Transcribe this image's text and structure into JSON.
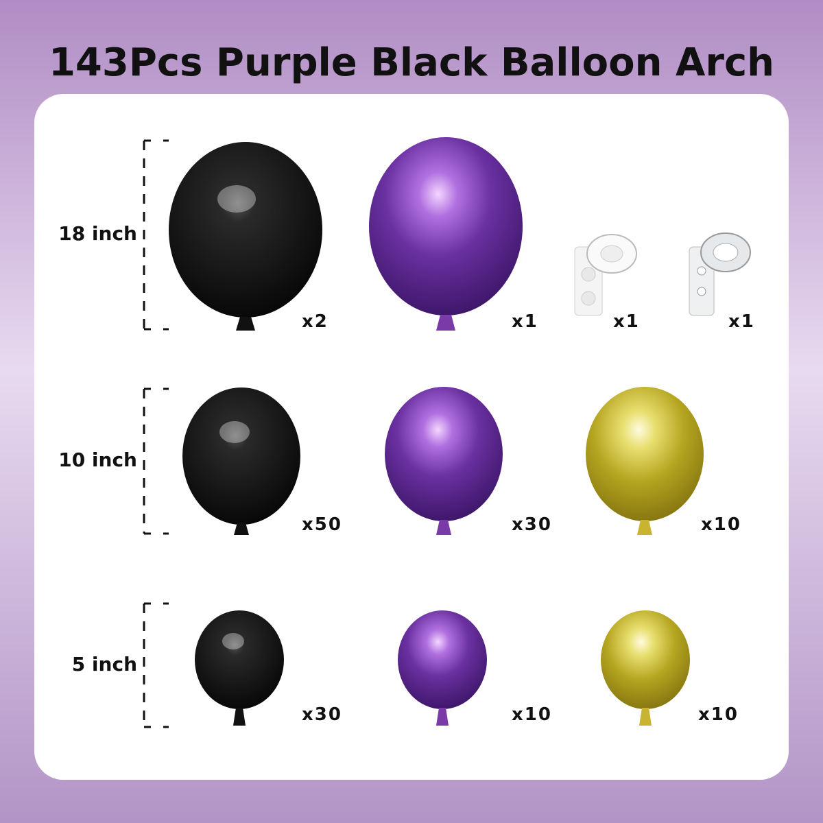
{
  "title": "143Pcs Purple Black Balloon Arch",
  "colors": {
    "background_top": "#b08cc4",
    "background_mid": "#e8daf0",
    "panel": "#ffffff",
    "black": "#111111",
    "purple": "#5a2a8c",
    "gold": "#b5a520"
  },
  "rows": [
    {
      "size_label": "18 inch",
      "items": [
        {
          "kind": "balloon",
          "color": "black",
          "qty": "x2"
        },
        {
          "kind": "balloon",
          "color": "purple",
          "qty": "x1"
        },
        {
          "kind": "glue-dots",
          "qty": "x1"
        },
        {
          "kind": "arch-strip",
          "qty": "x1"
        }
      ]
    },
    {
      "size_label": "10 inch",
      "items": [
        {
          "kind": "balloon",
          "color": "black",
          "qty": "x50"
        },
        {
          "kind": "balloon",
          "color": "purple",
          "qty": "x30"
        },
        {
          "kind": "balloon",
          "color": "gold",
          "qty": "x10"
        }
      ]
    },
    {
      "size_label": "5 inch",
      "items": [
        {
          "kind": "balloon",
          "color": "black",
          "qty": "x30"
        },
        {
          "kind": "balloon",
          "color": "purple",
          "qty": "x10"
        },
        {
          "kind": "balloon",
          "color": "gold",
          "qty": "x10"
        }
      ]
    }
  ]
}
